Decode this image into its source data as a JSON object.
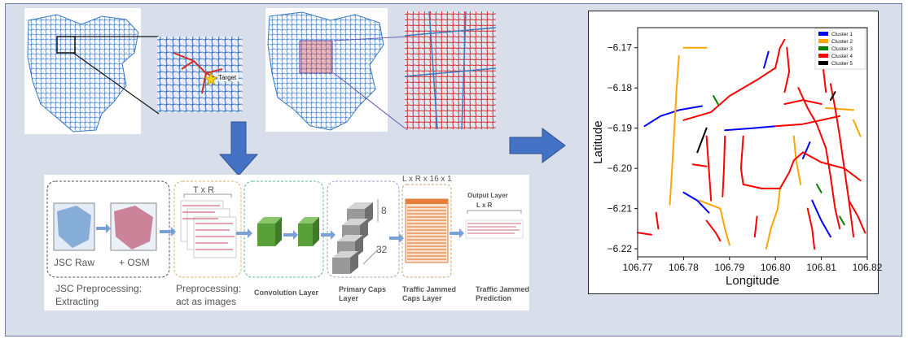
{
  "maps": {
    "target_label": "Target"
  },
  "pipeline": {
    "jsc_raw": "JSC Raw",
    "plus_osm": "+ OSM",
    "txr": "T x R",
    "lxrx16": "L x R x 16 x 1",
    "output_layer": "Output Layer",
    "lxr": "L x R",
    "caps_8": "8",
    "caps_32": "32",
    "stage1_a": "JSC Preprocessing:",
    "stage1_b": "Extracting",
    "stage2_a": "Preprocessing:",
    "stage2_b": "act as images",
    "stage3": "Convolution Layer",
    "stage4_a": "Primary Caps",
    "stage4_b": "Layer",
    "stage5_a": "Traffic Jammed",
    "stage5_b": "Caps Layer",
    "stage6_a": "Traffic Jammed",
    "stage6_b": "Prediction"
  },
  "colors": {
    "road_blue": "#3a78c0",
    "road_red": "#d42b2b",
    "arrow_blue": "#4472c4",
    "conv_green": "#5aa03a",
    "caps_orange": "#e67e3c"
  },
  "chart_data": {
    "type": "line",
    "title": "",
    "xlabel": "Longitude",
    "ylabel": "Latitude",
    "xlim": [
      106.77,
      106.82
    ],
    "ylim": [
      -6.222,
      -6.165
    ],
    "xticks": [
      "106.77",
      "106.78",
      "106.79",
      "106.80",
      "106.81",
      "106.82"
    ],
    "yticks": [
      "−6.17",
      "−6.18",
      "−6.19",
      "−6.20",
      "−6.21",
      "−6.22"
    ],
    "legend_position": "top-right",
    "series": [
      {
        "name": "Cluster 1",
        "color": "#0000ff",
        "segments": [
          [
            [
              106.7715,
              -6.1895
            ],
            [
              106.775,
              -6.187
            ],
            [
              106.779,
              -6.1855
            ],
            [
              106.784,
              -6.1845
            ]
          ],
          [
            [
              106.789,
              -6.1905
            ],
            [
              106.795,
              -6.19
            ],
            [
              106.8,
              -6.1895
            ]
          ],
          [
            [
              106.808,
              -6.208
            ],
            [
              106.81,
              -6.213
            ],
            [
              106.812,
              -6.217
            ]
          ],
          [
            [
              106.78,
              -6.206
            ],
            [
              106.783,
              -6.208
            ],
            [
              106.7855,
              -6.211
            ]
          ],
          [
            [
              106.7975,
              -6.175
            ],
            [
              106.7985,
              -6.171
            ]
          ],
          [
            [
              106.806,
              -6.1975
            ],
            [
              106.8075,
              -6.1935
            ]
          ]
        ]
      },
      {
        "name": "Cluster 2",
        "color": "#ffa500",
        "segments": [
          [
            [
              106.777,
              -6.209
            ],
            [
              106.7775,
              -6.2
            ],
            [
              106.778,
              -6.19
            ],
            [
              106.7785,
              -6.18
            ],
            [
              106.779,
              -6.172
            ]
          ],
          [
            [
              106.78,
              -6.17
            ],
            [
              106.785,
              -6.17
            ]
          ],
          [
            [
              106.7835,
              -6.208
            ],
            [
              106.788,
              -6.21
            ],
            [
              106.789,
              -6.215
            ],
            [
              106.79,
              -6.219
            ]
          ],
          [
            [
              106.801,
              -6.205
            ],
            [
              106.8005,
              -6.21
            ],
            [
              106.799,
              -6.215
            ],
            [
              106.798,
              -6.22
            ]
          ],
          [
            [
              106.804,
              -6.192
            ],
            [
              106.8045,
              -6.198
            ],
            [
              106.8055,
              -6.204
            ]
          ],
          [
            [
              106.811,
              -6.185
            ],
            [
              106.817,
              -6.1855
            ]
          ],
          [
            [
              106.817,
              -6.188
            ],
            [
              106.8185,
              -6.192
            ]
          ]
        ]
      },
      {
        "name": "Cluster 3",
        "color": "#008000",
        "segments": [
          [
            [
              106.7865,
              -6.182
            ],
            [
              106.7875,
              -6.184
            ]
          ],
          [
            [
              106.809,
              -6.204
            ],
            [
              106.81,
              -6.206
            ]
          ],
          [
            [
              106.814,
              -6.212
            ],
            [
              106.815,
              -6.214
            ]
          ]
        ]
      },
      {
        "name": "Cluster 4",
        "color": "#ff0000",
        "segments": [
          [
            [
              106.78,
              -6.188
            ],
            [
              106.786,
              -6.186
            ],
            [
              106.79,
              -6.182
            ],
            [
              106.796,
              -6.178
            ],
            [
              106.8,
              -6.175
            ],
            [
              106.801,
              -6.17
            ],
            [
              106.802,
              -6.168
            ]
          ],
          [
            [
              106.8,
              -6.1895
            ],
            [
              106.806,
              -6.189
            ],
            [
              106.81,
              -6.188
            ],
            [
              106.814,
              -6.187
            ]
          ],
          [
            [
              106.785,
              -6.192
            ],
            [
              106.7855,
              -6.2
            ],
            [
              106.786,
              -6.208
            ]
          ],
          [
            [
              106.789,
              -6.192
            ],
            [
              106.7888,
              -6.2
            ],
            [
              106.7885,
              -6.207
            ]
          ],
          [
            [
              106.793,
              -6.192
            ],
            [
              106.7925,
              -6.2
            ],
            [
              106.793,
              -6.204
            ],
            [
              106.797,
              -6.205
            ],
            [
              106.801,
              -6.205
            ]
          ],
          [
            [
              106.801,
              -6.205
            ],
            [
              106.803,
              -6.201
            ],
            [
              106.804,
              -6.198
            ],
            [
              106.806,
              -6.196
            ],
            [
              106.81,
              -6.1985
            ]
          ],
          [
            [
              106.81,
              -6.1985
            ],
            [
              106.815,
              -6.2
            ],
            [
              106.8185,
              -6.203
            ]
          ],
          [
            [
              106.812,
              -6.179
            ],
            [
              106.813,
              -6.185
            ],
            [
              106.814,
              -6.192
            ],
            [
              106.815,
              -6.2
            ],
            [
              106.816,
              -6.208
            ],
            [
              106.817,
              -6.217
            ]
          ],
          [
            [
              106.805,
              -6.18
            ],
            [
              106.807,
              -6.185
            ],
            [
              106.809,
              -6.189
            ]
          ],
          [
            [
              106.809,
              -6.189
            ],
            [
              106.811,
              -6.195
            ],
            [
              106.812,
              -6.202
            ],
            [
              106.813,
              -6.21
            ],
            [
              106.814,
              -6.215
            ]
          ],
          [
            [
              106.802,
              -6.184
            ],
            [
              106.806,
              -6.183
            ],
            [
              106.81,
              -6.184
            ]
          ],
          [
            [
              106.81,
              -6.17
            ],
            [
              106.8105,
              -6.176
            ],
            [
              106.811,
              -6.181
            ]
          ],
          [
            [
              106.785,
              -6.213
            ],
            [
              106.787,
              -6.216
            ],
            [
              106.788,
              -6.218
            ]
          ],
          [
            [
              106.77,
              -6.216
            ],
            [
              106.773,
              -6.2165
            ]
          ],
          [
            [
              106.774,
              -6.211
            ],
            [
              106.7745,
              -6.215
            ]
          ],
          [
            [
              106.807,
              -6.21
            ],
            [
              106.808,
              -6.215
            ],
            [
              106.8085,
              -6.22
            ]
          ],
          [
            [
              106.796,
              -6.212
            ],
            [
              106.7955,
              -6.217
            ]
          ],
          [
            [
              106.8025,
              -6.17
            ],
            [
              106.803,
              -6.176
            ],
            [
              106.802,
              -6.181
            ]
          ],
          [
            [
              106.782,
              -6.199
            ],
            [
              106.785,
              -6.1995
            ]
          ],
          [
            [
              106.816,
              -6.208
            ],
            [
              106.818,
              -6.212
            ],
            [
              106.8195,
              -6.216
            ]
          ]
        ]
      },
      {
        "name": "Cluster 5",
        "color": "#000000",
        "segments": [
          [
            [
              106.783,
              -6.196
            ],
            [
              106.784,
              -6.193
            ],
            [
              106.785,
              -6.19
            ]
          ],
          [
            [
              106.812,
              -6.183
            ],
            [
              106.813,
              -6.181
            ]
          ]
        ]
      }
    ]
  }
}
